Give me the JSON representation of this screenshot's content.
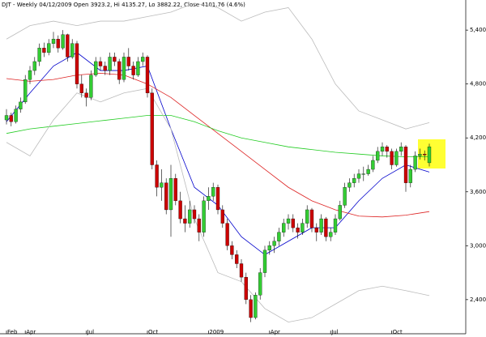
{
  "chart_data": {
    "type": "candlestick",
    "title": "DJT - Weekly 04/12/2009 Open 3923.2, Hi 4135.27, Lo 3882.22, Close 4101.76 (4.6%)",
    "categories": [
      "Feb",
      null,
      null,
      null,
      "Apr",
      null,
      null,
      null,
      null,
      null,
      null,
      null,
      null,
      null,
      null,
      null,
      null,
      "Jul",
      null,
      null,
      null,
      null,
      null,
      null,
      null,
      null,
      null,
      null,
      null,
      null,
      "Oct",
      null,
      null,
      null,
      null,
      null,
      null,
      null,
      null,
      null,
      null,
      null,
      null,
      "2009",
      null,
      null,
      null,
      null,
      null,
      null,
      null,
      null,
      null,
      null,
      null,
      null,
      "Apr",
      null,
      null,
      null,
      null,
      null,
      null,
      null,
      null,
      null,
      null,
      null,
      null,
      "Jul",
      null,
      null,
      null,
      null,
      null,
      null,
      null,
      null,
      null,
      null,
      null,
      null,
      "Oct",
      null,
      null,
      null,
      null,
      null,
      null,
      null,
      null
    ],
    "open": [
      4400,
      4450,
      4380,
      4520,
      4600,
      4850,
      4950,
      5050,
      5200,
      5150,
      5250,
      5300,
      5200,
      5350,
      5100,
      5250,
      4800,
      4700,
      4650,
      4900,
      5050,
      5000,
      4950,
      5100,
      5050,
      4850,
      5100,
      5000,
      4900,
      5050,
      5100,
      4700,
      3900,
      3650,
      3700,
      3400,
      3750,
      3500,
      3300,
      3250,
      3400,
      3300,
      3150,
      3500,
      3550,
      3650,
      3400,
      3250,
      3000,
      2900,
      2800,
      2650,
      2400,
      2200,
      2450,
      2700,
      2950,
      3000,
      3050,
      3150,
      3250,
      3300,
      3200,
      3150,
      3250,
      3400,
      3200,
      3150,
      3300,
      3100,
      3150,
      3300,
      3450,
      3650,
      3700,
      3750,
      3800,
      3800,
      3850,
      3950,
      4050,
      4100,
      4050,
      3900,
      4050,
      4100,
      3700,
      3850,
      4000,
      4020,
      3923.2
    ],
    "high": [
      4520,
      4480,
      4560,
      4650,
      4900,
      5000,
      5100,
      5250,
      5260,
      5300,
      5380,
      5340,
      5400,
      5360,
      5300,
      5280,
      4900,
      4750,
      4950,
      5100,
      5100,
      5050,
      5150,
      5150,
      5080,
      5150,
      5200,
      5050,
      5100,
      5150,
      5120,
      4750,
      3950,
      3850,
      3750,
      3900,
      3800,
      3600,
      3450,
      3500,
      3450,
      3350,
      3550,
      3650,
      3700,
      3680,
      3450,
      3300,
      3050,
      2950,
      2850,
      2700,
      2450,
      2480,
      2750,
      3000,
      3050,
      3100,
      3200,
      3300,
      3350,
      3350,
      3250,
      3300,
      3450,
      3420,
      3250,
      3350,
      3320,
      3200,
      3350,
      3500,
      3700,
      3750,
      3800,
      3850,
      3880,
      3900,
      4000,
      4100,
      4150,
      4120,
      4080,
      4080,
      4150,
      4120,
      3900,
      4050,
      4080,
      4060,
      4135.27
    ],
    "low": [
      4350,
      4330,
      4360,
      4480,
      4580,
      4800,
      4900,
      5000,
      5100,
      5120,
      5200,
      5150,
      5180,
      5050,
      5080,
      4750,
      4650,
      4550,
      4620,
      4880,
      4950,
      4900,
      4900,
      5000,
      4800,
      4820,
      4950,
      4850,
      4880,
      5000,
      4650,
      3850,
      3550,
      3500,
      3350,
      3100,
      3450,
      3250,
      3150,
      3200,
      3250,
      3050,
      3100,
      3400,
      3500,
      3350,
      3200,
      2950,
      2850,
      2750,
      2600,
      2350,
      2150,
      2180,
      2400,
      2650,
      2900,
      2920,
      3000,
      3100,
      3180,
      3150,
      3080,
      3120,
      3200,
      3150,
      3050,
      3120,
      3050,
      3050,
      3120,
      3280,
      3420,
      3600,
      3650,
      3700,
      3720,
      3780,
      3820,
      3920,
      4000,
      3980,
      3850,
      3880,
      4000,
      3600,
      3650,
      3820,
      3960,
      3950,
      3882.22
    ],
    "close": [
      4450,
      4380,
      4520,
      4600,
      4850,
      4950,
      5050,
      5200,
      5150,
      5250,
      5300,
      5200,
      5350,
      5100,
      5250,
      4800,
      4700,
      4650,
      4900,
      5050,
      5000,
      4950,
      5100,
      5050,
      4850,
      5100,
      5000,
      4900,
      5050,
      5100,
      4700,
      3900,
      3650,
      3700,
      3400,
      3750,
      3500,
      3300,
      3250,
      3400,
      3300,
      3150,
      3500,
      3550,
      3650,
      3400,
      3250,
      3000,
      2900,
      2800,
      2650,
      2400,
      2200,
      2450,
      2700,
      2950,
      3000,
      3050,
      3150,
      3250,
      3300,
      3200,
      3150,
      3250,
      3400,
      3200,
      3150,
      3300,
      3100,
      3150,
      3300,
      3450,
      3650,
      3700,
      3750,
      3800,
      3800,
      3850,
      3950,
      4050,
      4100,
      4050,
      3900,
      4050,
      4100,
      3700,
      3850,
      4000,
      4020,
      4010,
      4101.76
    ],
    "up_color": "#33cc33",
    "down_color": "#cc0000",
    "lines": [
      {
        "color": "#0000cc",
        "x": [
          0,
          5,
          10,
          15,
          20,
          25,
          30,
          35,
          40,
          45,
          50,
          55,
          60,
          65,
          70,
          75,
          80,
          85,
          90
        ],
        "values": [
          4380,
          4700,
          5000,
          5150,
          4950,
          4950,
          5000,
          4300,
          3650,
          3450,
          3100,
          2900,
          3050,
          3200,
          3200,
          3500,
          3750,
          3900,
          3820
        ]
      },
      {
        "color": "#dd2222",
        "x": [
          0,
          5,
          10,
          15,
          20,
          25,
          30,
          35,
          40,
          45,
          50,
          55,
          60,
          65,
          70,
          75,
          80,
          85,
          90
        ],
        "values": [
          4860,
          4830,
          4850,
          4900,
          4920,
          4900,
          4800,
          4650,
          4450,
          4250,
          4050,
          3850,
          3650,
          3500,
          3400,
          3330,
          3320,
          3340,
          3380
        ]
      },
      {
        "color": "#22cc22",
        "x": [
          0,
          5,
          10,
          15,
          20,
          25,
          30,
          35,
          40,
          45,
          50,
          55,
          60,
          65,
          70,
          75,
          80,
          85,
          90
        ],
        "values": [
          4250,
          4300,
          4330,
          4360,
          4390,
          4420,
          4450,
          4450,
          4380,
          4280,
          4200,
          4150,
          4100,
          4070,
          4040,
          4020,
          4000,
          3990,
          3990
        ]
      },
      {
        "color": "#bbbbbb",
        "x": [
          0,
          5,
          10,
          15,
          20,
          25,
          30,
          35,
          40,
          45,
          50,
          55,
          60,
          65,
          70,
          75,
          80,
          85,
          90
        ],
        "values": [
          5300,
          5450,
          5500,
          5450,
          5500,
          5500,
          5550,
          5600,
          5700,
          5650,
          5500,
          5600,
          5650,
          5300,
          4800,
          4500,
          4400,
          4300,
          4370
        ]
      },
      {
        "color": "#bbbbbb",
        "x": [
          0,
          5,
          10,
          15,
          20,
          25,
          30,
          35,
          40,
          45,
          50,
          55,
          60,
          65,
          70,
          75,
          80,
          85,
          90
        ],
        "values": [
          4150,
          4000,
          4400,
          4700,
          4600,
          4700,
          4750,
          4300,
          3300,
          2700,
          2600,
          2300,
          2150,
          2200,
          2350,
          2500,
          2550,
          2500,
          2445
        ]
      }
    ],
    "ylim": [
      2020,
      5735
    ],
    "yticks": [
      {
        "value": 2400,
        "label": "2,400"
      },
      {
        "value": 3000,
        "label": "3,000"
      },
      {
        "value": 3600,
        "label": "3,600"
      },
      {
        "value": 4200,
        "label": "4,200"
      },
      {
        "value": 4800,
        "label": "4,800"
      },
      {
        "value": 5400,
        "label": "5,400"
      }
    ]
  }
}
